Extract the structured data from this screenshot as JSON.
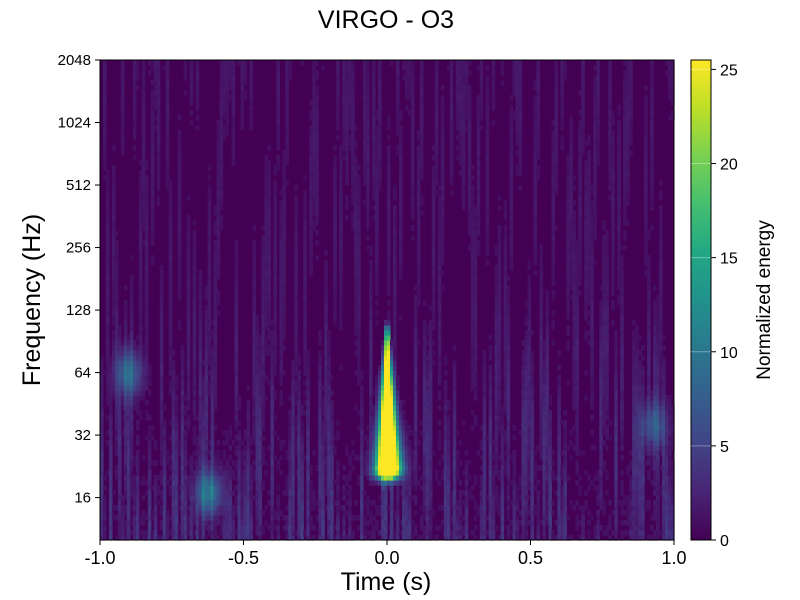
{
  "colors": {
    "colormap": [
      "#440154",
      "#482475",
      "#414487",
      "#355f8d",
      "#2a788e",
      "#21918c",
      "#22a884",
      "#44bf70",
      "#7ad151",
      "#bddf26",
      "#fde725"
    ]
  },
  "chart_data": {
    "type": "heatmap",
    "title": "VIRGO - O3",
    "xlabel": "Time (s)",
    "ylabel": "Frequency (Hz)",
    "xlim": [
      -1.0,
      1.0
    ],
    "ylim": [
      10,
      2048
    ],
    "yscale": "log2",
    "x_ticks": [
      -1.0,
      -0.5,
      0.0,
      0.5,
      1.0
    ],
    "x_tick_labels": [
      "-1.0",
      "-0.5",
      "0.0",
      "0.5",
      "1.0"
    ],
    "y_ticks": [
      16,
      32,
      64,
      128,
      256,
      512,
      1024,
      2048
    ],
    "y_tick_labels": [
      "16",
      "32",
      "64",
      "128",
      "256",
      "512",
      "1024",
      "2048"
    ],
    "colorbar": {
      "label": "Normalized energy",
      "range": [
        0,
        25.5
      ],
      "ticks": [
        0,
        5,
        10,
        15,
        20,
        25
      ],
      "tick_labels": [
        "0",
        "5",
        "10",
        "15",
        "20",
        "25"
      ],
      "placement": "right"
    },
    "grid": false,
    "features": [
      {
        "kind": "chirp",
        "t": 0.0,
        "f_low": 22,
        "f_high": 100,
        "peak_energy": 25.5
      },
      {
        "kind": "blob",
        "t": -0.9,
        "f": 64,
        "energy": 8
      },
      {
        "kind": "blob",
        "t": -0.62,
        "f": 17,
        "energy": 9
      },
      {
        "kind": "blob",
        "t": 0.93,
        "f": 36,
        "energy": 6
      }
    ]
  }
}
